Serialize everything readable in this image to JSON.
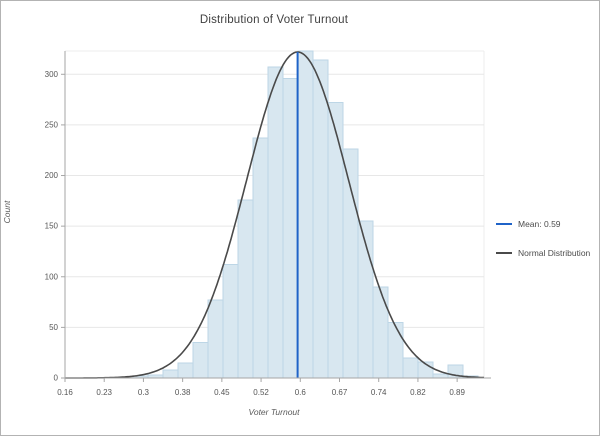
{
  "window": {
    "background": "#ffffff",
    "border_color": "#b3b3b3"
  },
  "chart_data": {
    "type": "bar",
    "variant": "histogram-with-normal-fit",
    "title": "Distribution of Voter Turnout",
    "xlabel": "Voter Turnout",
    "ylabel": "Count",
    "x_ticks": {
      "values": [
        0.16,
        0.233,
        0.306,
        0.379,
        0.452,
        0.525,
        0.598,
        0.671,
        0.744,
        0.817,
        0.89
      ],
      "labels": [
        "0.16",
        "0.23",
        "0.3",
        "0.38",
        "0.45",
        "0.52",
        "0.6",
        "0.67",
        "0.74",
        "0.82",
        "0.89"
      ]
    },
    "y_ticks": [
      0,
      50,
      100,
      150,
      200,
      250,
      300
    ],
    "xlim": [
      0.16,
      0.94
    ],
    "ylim": [
      0,
      323
    ],
    "grid": true,
    "legend_position": "right",
    "histogram": {
      "bin_start": 0.287,
      "bin_width": 0.0279,
      "counts": [
        2,
        3,
        8,
        15,
        35,
        77,
        112,
        176,
        237,
        307,
        296,
        323,
        314,
        272,
        226,
        155,
        90,
        55,
        20,
        16,
        4,
        13,
        2
      ]
    },
    "normal_curve": {
      "mean": 0.593,
      "sigma": 0.095,
      "peak_count": 322
    },
    "mean_line": {
      "x": 0.593,
      "label": "Mean: 0.59"
    },
    "legend": [
      {
        "label": "Mean: 0.59",
        "swatch_color": "#1f63c8",
        "swatch": "line"
      },
      {
        "label": "Normal Distribution",
        "swatch_color": "#4a4a4a",
        "swatch": "line"
      }
    ],
    "colors": {
      "bar_fill": "#d8e7f0",
      "bar_stroke": "#bdd6e6",
      "curve": "#4a4a4a",
      "mean_line": "#1f63c8",
      "grid": "#e7e7e7",
      "plot_border": "#ececec",
      "axis": "#a6a6a6",
      "tick_text": "#565656",
      "title_text": "#3f3f3f"
    }
  }
}
